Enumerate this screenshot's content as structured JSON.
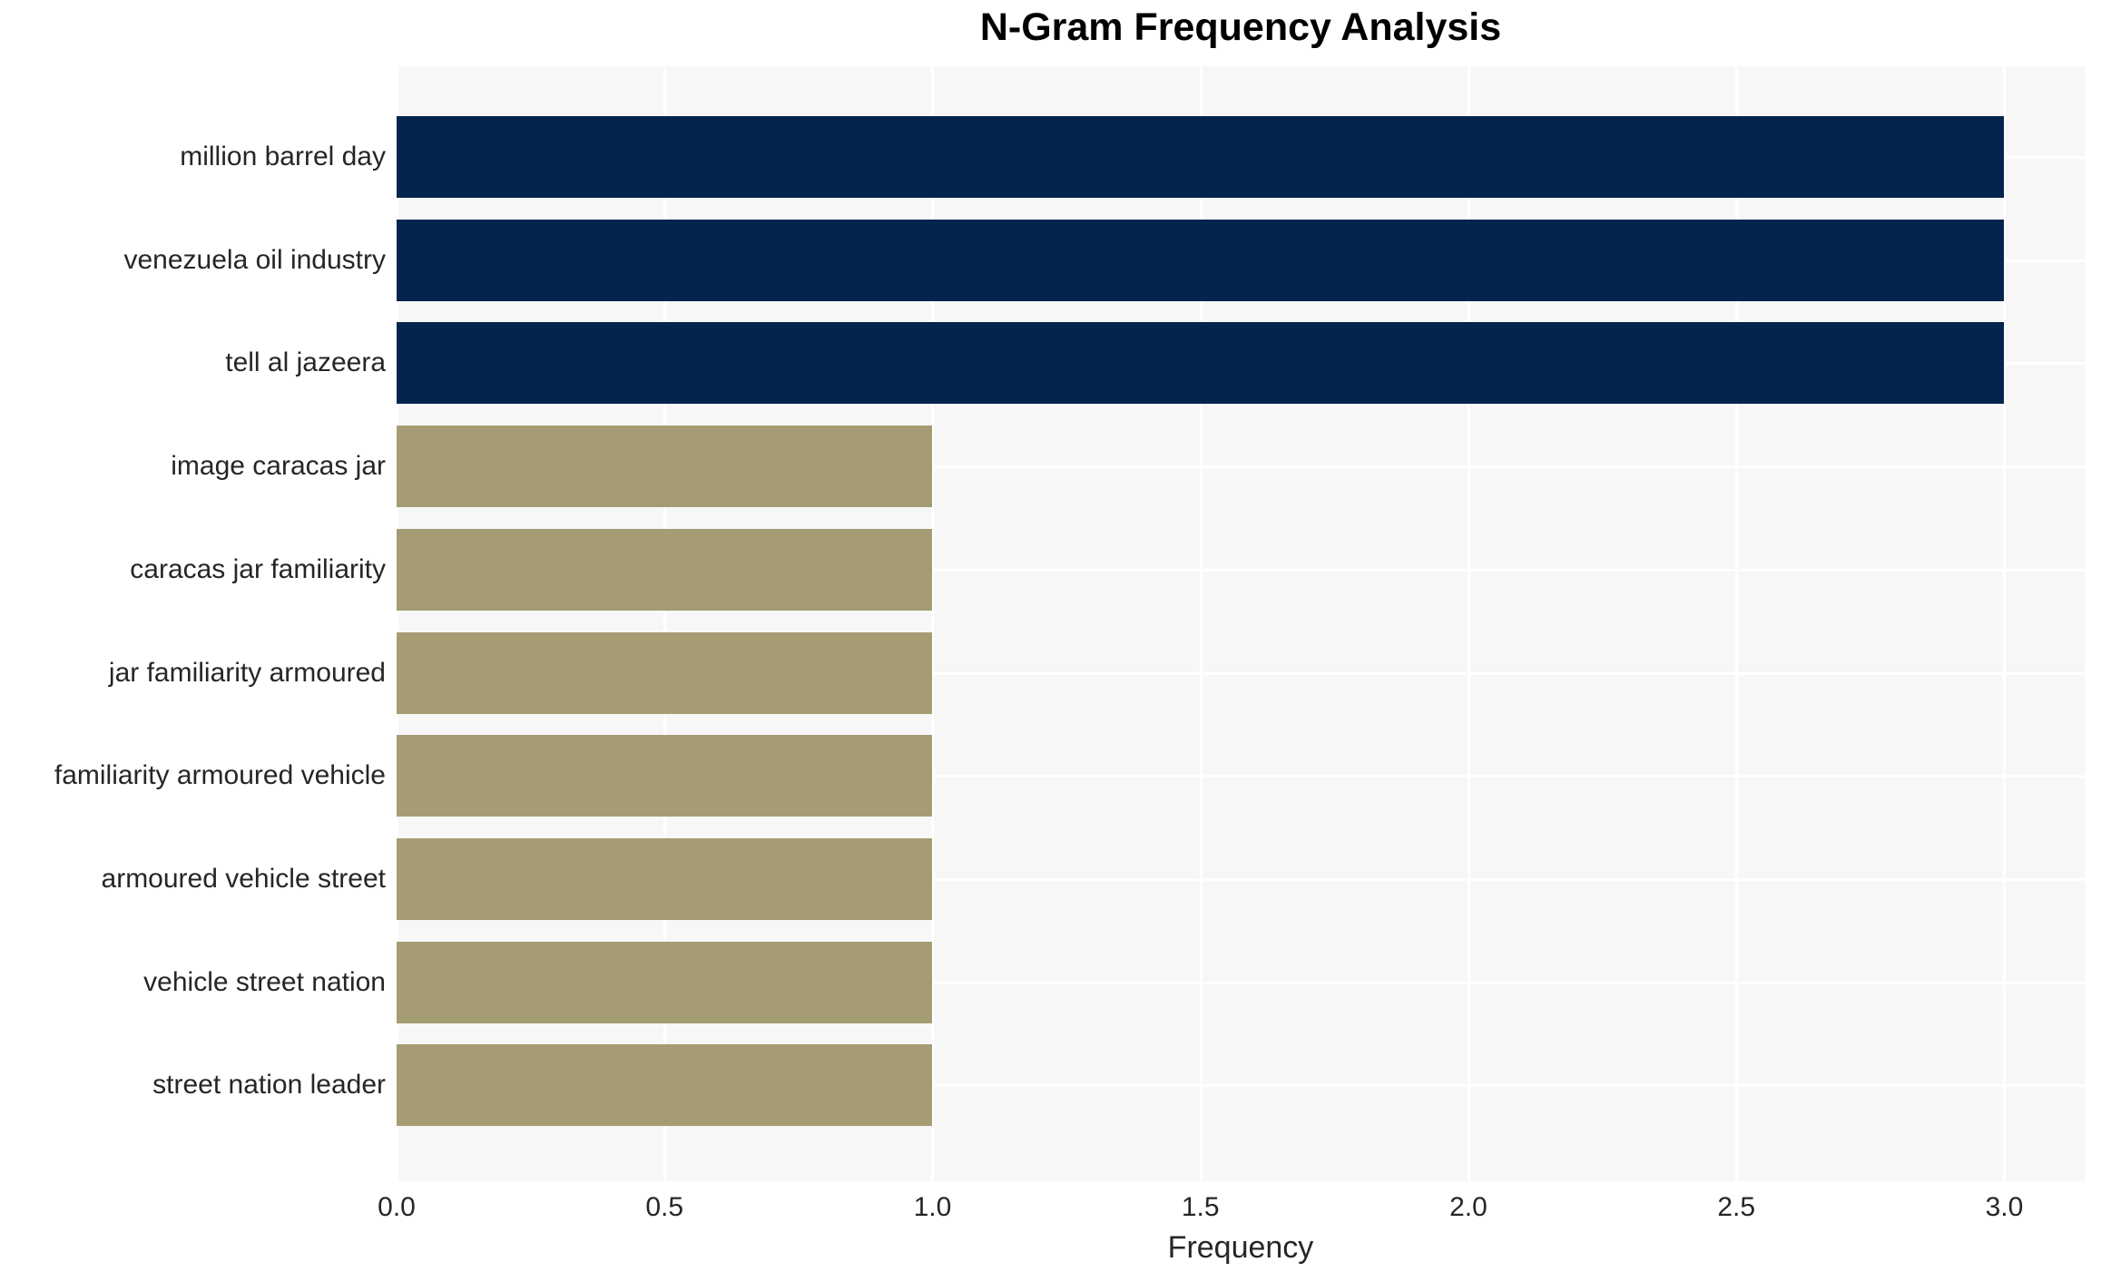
{
  "title": "N-Gram Frequency Analysis",
  "colors": {
    "bar_high": "#04244d",
    "bar_low": "#a59c74",
    "plot_background": "#f7f7f7",
    "gridline": "#ffffff",
    "tick_text": "#262626",
    "title_text": "#000000",
    "figure_background": "#ffffff"
  },
  "chart_data": {
    "type": "bar",
    "orientation": "horizontal",
    "title": "N-Gram Frequency Analysis",
    "xlabel": "Frequency",
    "ylabel": "",
    "categories": [
      "million barrel day",
      "venezuela oil industry",
      "tell al jazeera",
      "image caracas jar",
      "caracas jar familiarity",
      "jar familiarity armoured",
      "familiarity armoured vehicle",
      "armoured vehicle street",
      "vehicle street nation",
      "street nation leader"
    ],
    "values": [
      3,
      3,
      3,
      1,
      1,
      1,
      1,
      1,
      1,
      1
    ],
    "bar_colors": [
      "#04244d",
      "#04244d",
      "#04244d",
      "#a59c74",
      "#a59c74",
      "#a59c74",
      "#a59c74",
      "#a59c74",
      "#a59c74",
      "#a59c74"
    ],
    "xlim": [
      0,
      3.15
    ],
    "xticks": [
      "0.0",
      "0.5",
      "1.0",
      "1.5",
      "2.0",
      "2.5",
      "3.0"
    ],
    "xtick_values": [
      0,
      0.5,
      1.0,
      1.5,
      2.0,
      2.5,
      3.0
    ],
    "grid": true,
    "legend": false
  }
}
